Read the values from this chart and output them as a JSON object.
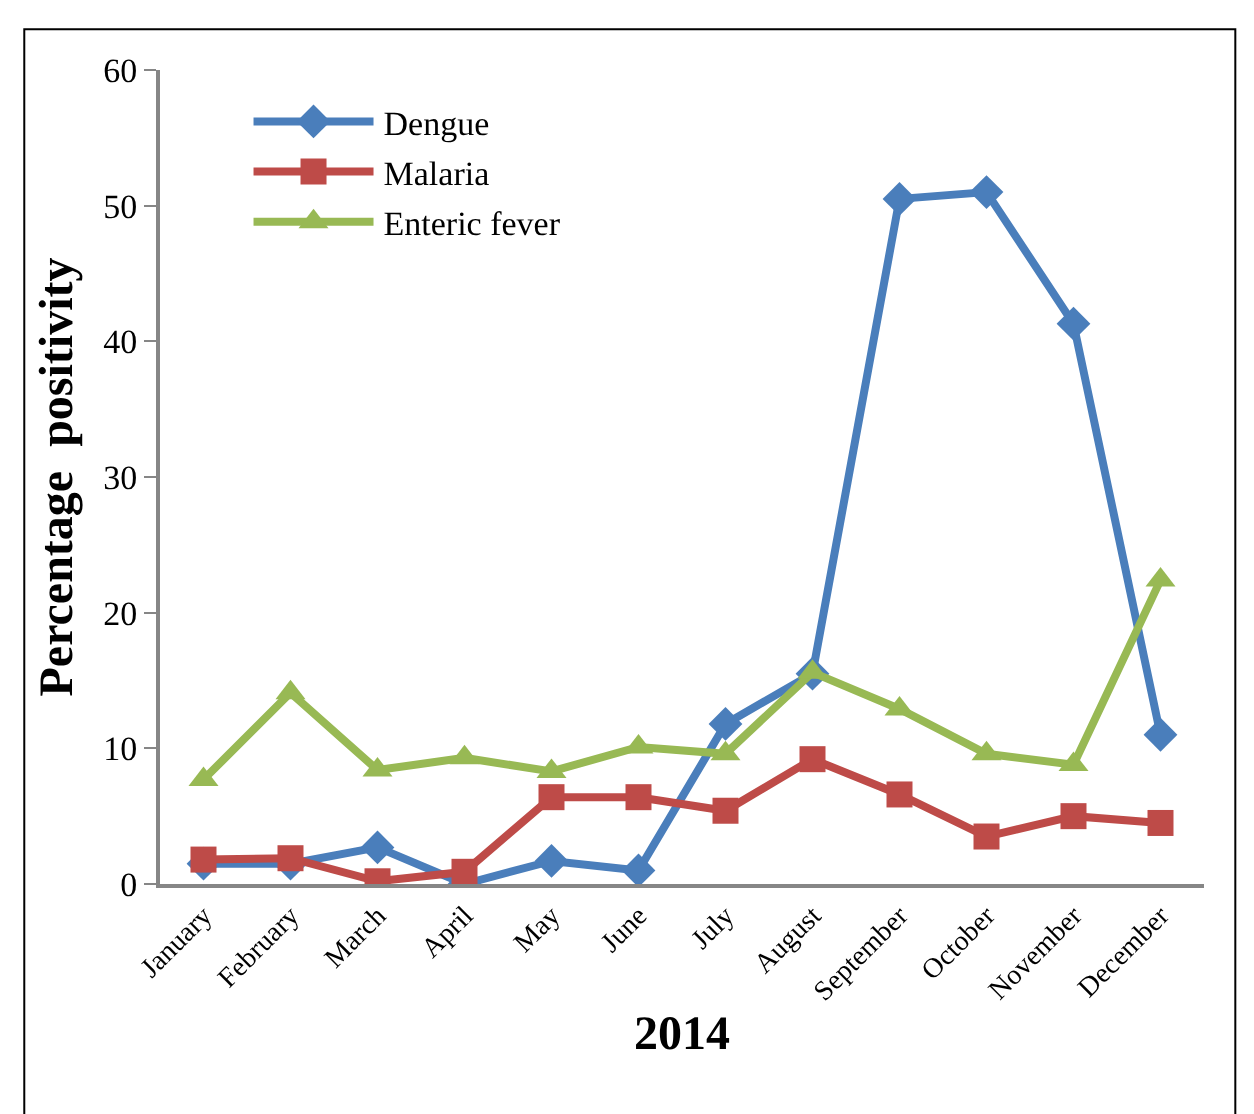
{
  "chart_data": {
    "type": "line",
    "xlabel": "2014",
    "ylabel": "Percentage  positivity",
    "categories": [
      "January",
      "February",
      "March",
      "April",
      "May",
      "June",
      "July",
      "August",
      "September",
      "October",
      "November",
      "December"
    ],
    "series": [
      {
        "name": "Dengue",
        "color": "#4a7ebb",
        "marker": "diamond",
        "values": [
          1.5,
          1.5,
          2.7,
          0,
          1.7,
          1.0,
          11.8,
          15.5,
          50.5,
          51,
          41.3,
          11
        ]
      },
      {
        "name": "Malaria",
        "color": "#be4b48",
        "marker": "square",
        "values": [
          1.8,
          1.9,
          0.2,
          0.9,
          6.4,
          6.4,
          5.4,
          9.2,
          6.6,
          3.5,
          5.0,
          4.5
        ]
      },
      {
        "name": "Enteric fever",
        "color": "#98b954",
        "marker": "triangle",
        "values": [
          7.7,
          14.1,
          8.4,
          9.3,
          8.3,
          10.1,
          9.6,
          15.6,
          12.9,
          9.6,
          8.8,
          22.4
        ]
      }
    ],
    "ylim": [
      0,
      60
    ],
    "yticks": [
      0,
      10,
      20,
      30,
      40,
      50,
      60
    ],
    "legend": "top left"
  }
}
